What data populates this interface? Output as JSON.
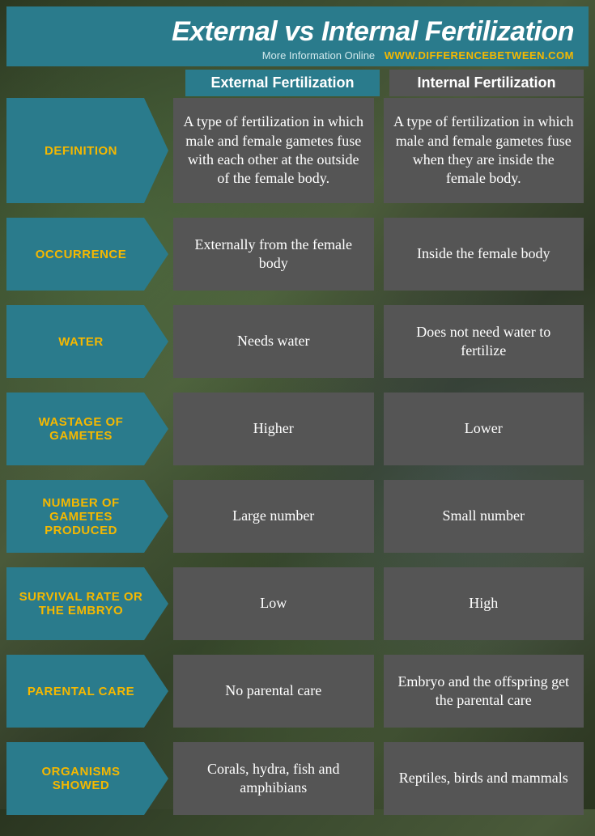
{
  "header": {
    "title": "External vs Internal Fertilization",
    "subtitle_text": "More Information  Online",
    "subtitle_url": "WWW.DIFFERENCEBETWEEN.COM"
  },
  "columns": {
    "external": "External Fertilization",
    "internal": "Internal Fertilization"
  },
  "rows": [
    {
      "label": "DEFINITION",
      "external": "A type of fertilization in which male and female gametes fuse with each other at the outside of the female body.",
      "internal": "A type of fertilization in which male and female gametes fuse when they are inside the female body."
    },
    {
      "label": "OCCURRENCE",
      "external": "Externally from the female body",
      "internal": "Inside the female body"
    },
    {
      "label": "WATER",
      "external": "Needs water",
      "internal": "Does not need water to fertilize"
    },
    {
      "label": "WASTAGE OF GAMETES",
      "external": "Higher",
      "internal": "Lower"
    },
    {
      "label": "NUMBER OF GAMETES PRODUCED",
      "external": "Large number",
      "internal": "Small number"
    },
    {
      "label": "SURVIVAL RATE OR THE EMBRYO",
      "external": "Low",
      "internal": "High"
    },
    {
      "label": "PARENTAL CARE",
      "external": "No parental care",
      "internal": "Embryo and the offspring get the parental care"
    },
    {
      "label": "ORGANISMS SHOWED",
      "external": "Corals, hydra, fish and amphibians",
      "internal": "Reptiles, birds and mammals"
    }
  ],
  "colors": {
    "teal": "#2a7b8c",
    "gold": "#f5b800",
    "gray": "#555555",
    "white": "#ffffff"
  }
}
